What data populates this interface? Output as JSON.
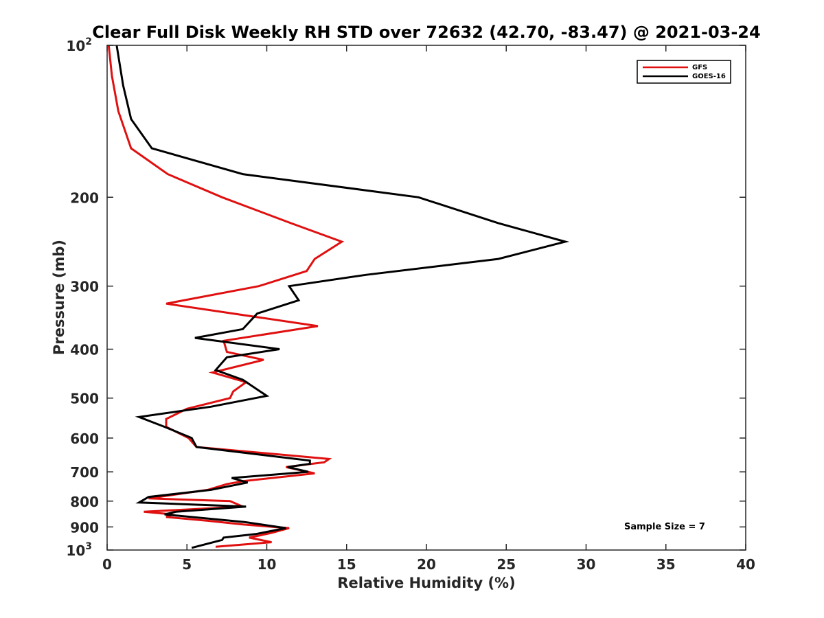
{
  "chart_data": {
    "type": "line",
    "title": "Clear Full Disk Weekly RH STD over 72632 (42.70, -83.47) @ 2021-03-24",
    "xlabel": "Relative Humidity (%)",
    "ylabel": "Pressure (mb)",
    "xlim": [
      0,
      40
    ],
    "ylim": [
      100,
      1000
    ],
    "y_scale": "log",
    "y_reversed": true,
    "x_ticks": [
      "0",
      "5",
      "10",
      "15",
      "20",
      "25",
      "30",
      "35",
      "40"
    ],
    "y_ticks": [
      {
        "value": 100,
        "base": "10",
        "exp": "2"
      },
      {
        "value": 200,
        "label": "200"
      },
      {
        "value": 300,
        "label": "300"
      },
      {
        "value": 400,
        "label": "400"
      },
      {
        "value": 500,
        "label": "500"
      },
      {
        "value": 600,
        "label": "600"
      },
      {
        "value": 700,
        "label": "700"
      },
      {
        "value": 800,
        "label": "800"
      },
      {
        "value": 900,
        "label": "900"
      },
      {
        "value": 1000,
        "base": "10",
        "exp": "3"
      }
    ],
    "legend_position": "top-right",
    "annotation": "Sample Size = 7",
    "series": [
      {
        "name": "GFS",
        "color": "#e01010",
        "points": [
          [
            0.1,
            100
          ],
          [
            0.3,
            115
          ],
          [
            0.7,
            135
          ],
          [
            1.5,
            160
          ],
          [
            3.8,
            180
          ],
          [
            7.2,
            200
          ],
          [
            11.5,
            225
          ],
          [
            14.7,
            245
          ],
          [
            13.0,
            265
          ],
          [
            12.5,
            280
          ],
          [
            9.5,
            300
          ],
          [
            3.7,
            325
          ],
          [
            13.2,
            360
          ],
          [
            7.3,
            385
          ],
          [
            7.5,
            405
          ],
          [
            9.8,
            420
          ],
          [
            6.6,
            445
          ],
          [
            8.7,
            465
          ],
          [
            7.9,
            485
          ],
          [
            7.7,
            500
          ],
          [
            5.0,
            525
          ],
          [
            3.7,
            550
          ],
          [
            3.7,
            570
          ],
          [
            5.1,
            600
          ],
          [
            5.6,
            625
          ],
          [
            13.9,
            660
          ],
          [
            13.6,
            670
          ],
          [
            11.2,
            685
          ],
          [
            13.0,
            705
          ],
          [
            8.6,
            730
          ],
          [
            7.5,
            740
          ],
          [
            6.3,
            760
          ],
          [
            2.6,
            790
          ],
          [
            7.7,
            800
          ],
          [
            8.5,
            820
          ],
          [
            2.3,
            840
          ],
          [
            4.1,
            850
          ],
          [
            3.7,
            860
          ],
          [
            6.3,
            875
          ],
          [
            8.5,
            890
          ],
          [
            11.4,
            905
          ],
          [
            10.3,
            925
          ],
          [
            8.9,
            945
          ],
          [
            10.3,
            965
          ],
          [
            6.8,
            985
          ]
        ]
      },
      {
        "name": "GOES-16",
        "color": "#000000",
        "points": [
          [
            0.6,
            100
          ],
          [
            1.0,
            120
          ],
          [
            1.5,
            140
          ],
          [
            2.8,
            160
          ],
          [
            8.5,
            180
          ],
          [
            19.5,
            200
          ],
          [
            24.5,
            225
          ],
          [
            28.7,
            245
          ],
          [
            24.5,
            265
          ],
          [
            16.2,
            285
          ],
          [
            11.4,
            300
          ],
          [
            12.0,
            320
          ],
          [
            9.4,
            340
          ],
          [
            8.5,
            365
          ],
          [
            5.5,
            380
          ],
          [
            10.8,
            400
          ],
          [
            7.5,
            415
          ],
          [
            6.8,
            440
          ],
          [
            8.5,
            460
          ],
          [
            10.0,
            495
          ],
          [
            6.5,
            520
          ],
          [
            2.0,
            545
          ],
          [
            3.6,
            570
          ],
          [
            5.3,
            600
          ],
          [
            5.6,
            625
          ],
          [
            12.7,
            665
          ],
          [
            12.7,
            675
          ],
          [
            11.3,
            685
          ],
          [
            12.6,
            700
          ],
          [
            7.8,
            720
          ],
          [
            8.8,
            735
          ],
          [
            6.5,
            760
          ],
          [
            2.6,
            785
          ],
          [
            2.0,
            805
          ],
          [
            8.7,
            820
          ],
          [
            4.3,
            840
          ],
          [
            3.6,
            850
          ],
          [
            8.6,
            880
          ],
          [
            11.2,
            905
          ],
          [
            9.3,
            930
          ],
          [
            7.3,
            945
          ],
          [
            7.2,
            955
          ],
          [
            5.3,
            990
          ]
        ]
      }
    ]
  }
}
